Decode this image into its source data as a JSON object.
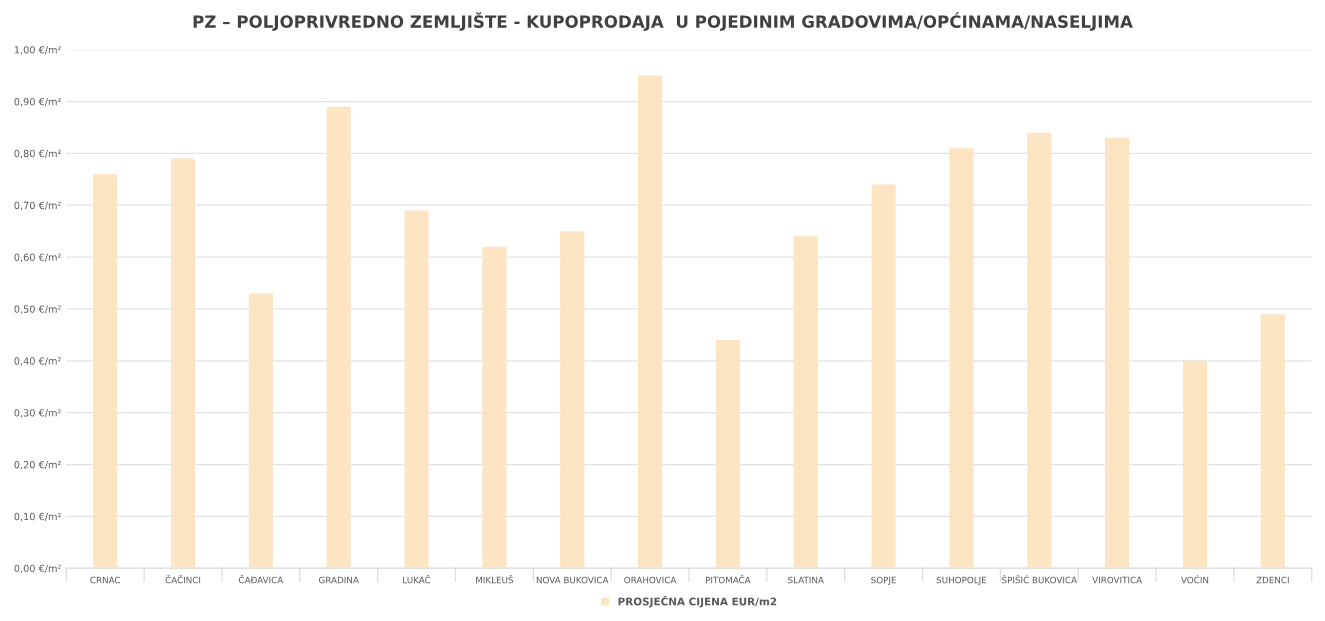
{
  "chart_data": {
    "type": "bar",
    "title": "PZ – POLJOPRIVREDNO ZEMLJIŠTE - KUPOPRODAJA  U POJEDINIM GRADOVIMA/OPĆINAMA/NASELJIMA",
    "categories": [
      "CRNAC",
      "ČAČINCI",
      "ČAĐAVICA",
      "GRADINA",
      "LUKAČ",
      "MIKLEUŠ",
      "NOVA BUKOVICA",
      "ORAHOVICA",
      "PITOMAČA",
      "SLATINA",
      "SOPJE",
      "SUHOPOLJE",
      "ŠPIŠIĆ BUKOVICA",
      "VIROVITICA",
      "VOĆIN",
      "ZDENCI"
    ],
    "series": [
      {
        "name": "PROSJEČNA CIJENA EUR/m2",
        "color": "#fde4c2",
        "values": [
          0.76,
          0.79,
          0.53,
          0.89,
          0.69,
          0.62,
          0.65,
          0.95,
          0.44,
          0.64,
          0.74,
          0.81,
          0.84,
          0.83,
          0.4,
          0.49
        ]
      }
    ],
    "ylim": [
      0,
      1
    ],
    "yticks": [
      {
        "value": 0,
        "label": "0,00 €/m²"
      },
      {
        "value": 0.1,
        "label": "0,10 €/m²"
      },
      {
        "value": 0.2,
        "label": "0,20 €/m²"
      },
      {
        "value": 0.3,
        "label": "0,30 €/m²"
      },
      {
        "value": 0.4,
        "label": "0,40 €/m²"
      },
      {
        "value": 0.5,
        "label": "0,50 €/m²"
      },
      {
        "value": 0.6,
        "label": "0,60 €/m²"
      },
      {
        "value": 0.7,
        "label": "0,70 €/m²"
      },
      {
        "value": 0.8,
        "label": "0,80 €/m²"
      },
      {
        "value": 0.9,
        "label": "0,90 €/m²"
      },
      {
        "value": 1,
        "label": "1,00 €/m²"
      }
    ],
    "grid": "y",
    "legend": "bottom"
  }
}
